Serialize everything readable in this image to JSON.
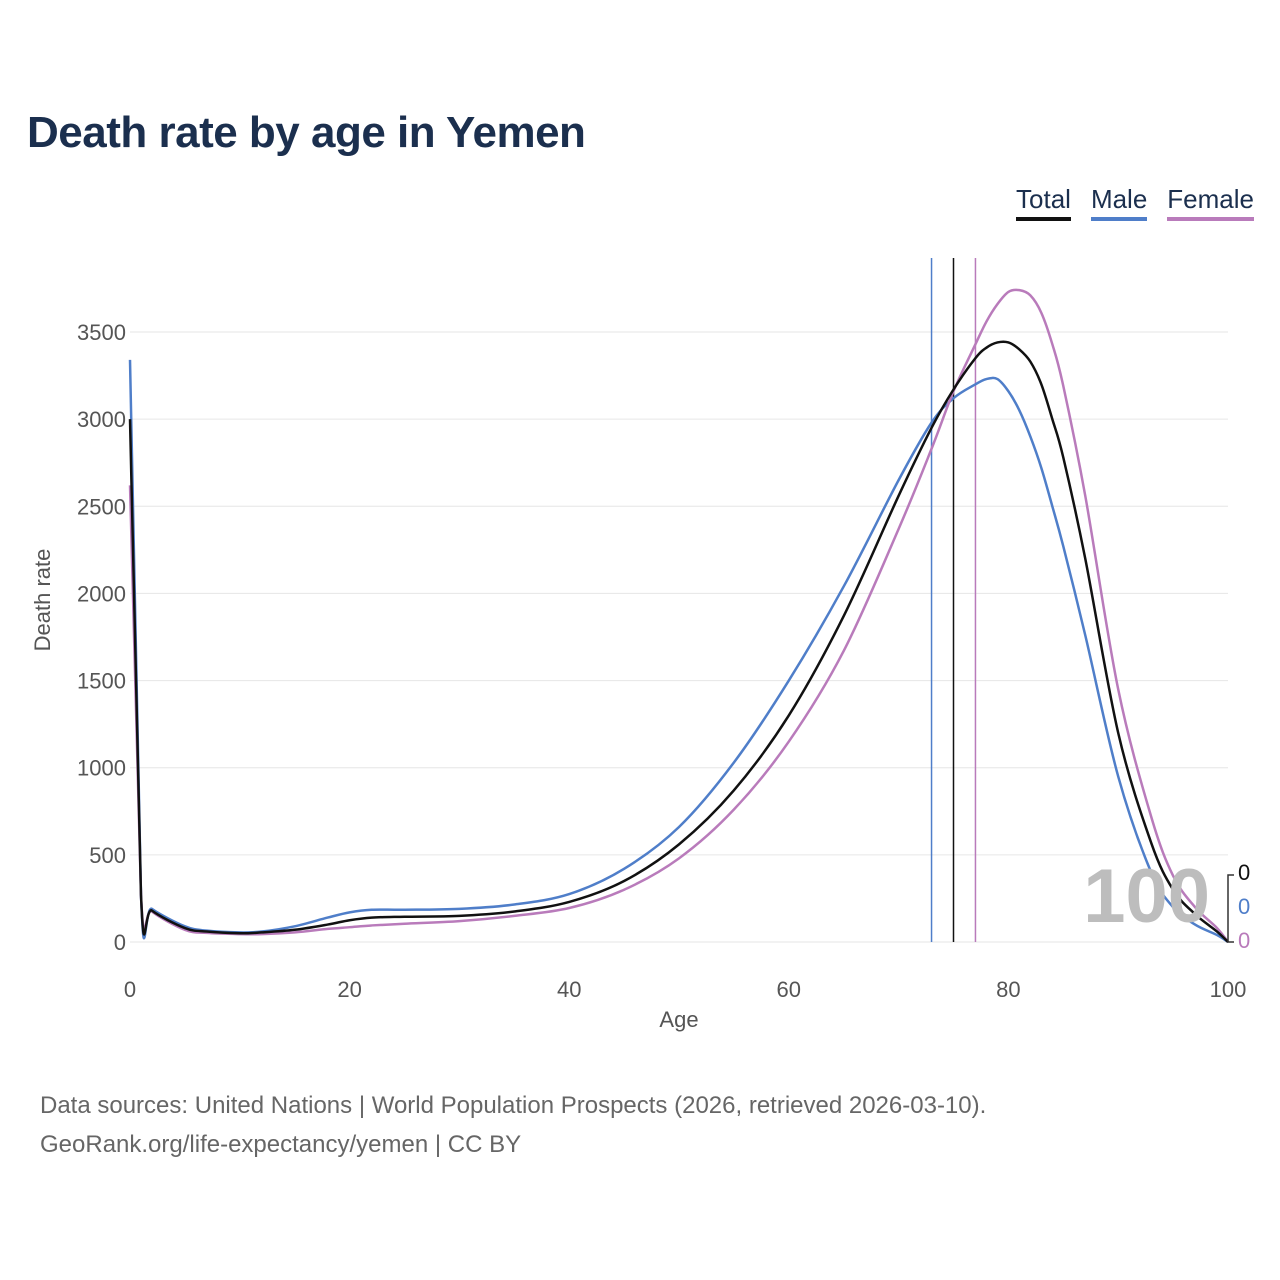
{
  "title": "Death rate by age in Yemen",
  "legend": {
    "total": "Total",
    "male": "Male",
    "female": "Female"
  },
  "colors": {
    "total": "#111111",
    "male": "#4f7ec9",
    "female": "#b97bbb",
    "title": "#1b2f4e",
    "grid": "#e6e6e6"
  },
  "chart_data": {
    "type": "line",
    "title": "Death rate by age in Yemen",
    "xlabel": "Age",
    "ylabel": "Death rate",
    "xlim": [
      0,
      100
    ],
    "ylim": [
      0,
      3900
    ],
    "xticks": [
      0,
      20,
      40,
      60,
      80,
      100
    ],
    "yticks": [
      0,
      500,
      1000,
      1500,
      2000,
      2500,
      3000,
      3500
    ],
    "x": [
      0,
      1,
      2,
      5,
      7,
      10,
      12,
      15,
      18,
      20,
      22,
      25,
      30,
      35,
      40,
      45,
      50,
      55,
      60,
      65,
      70,
      73,
      75,
      77,
      78,
      79,
      80,
      81,
      82,
      83,
      84,
      85,
      87,
      90,
      93,
      95,
      97,
      99,
      100
    ],
    "series": [
      {
        "name": "Total",
        "values": [
          3000,
          270,
          180,
          80,
          60,
          50,
          55,
          70,
          100,
          125,
          140,
          145,
          150,
          175,
          230,
          350,
          560,
          870,
          1300,
          1870,
          2560,
          2950,
          3170,
          3350,
          3410,
          3440,
          3440,
          3400,
          3330,
          3200,
          3000,
          2780,
          2200,
          1200,
          570,
          300,
          160,
          60,
          0
        ]
      },
      {
        "name": "Male",
        "values": [
          3340,
          270,
          190,
          90,
          65,
          55,
          60,
          90,
          140,
          170,
          185,
          185,
          190,
          215,
          275,
          420,
          660,
          1030,
          1500,
          2040,
          2650,
          2980,
          3120,
          3200,
          3230,
          3230,
          3160,
          3050,
          2900,
          2720,
          2500,
          2270,
          1760,
          950,
          400,
          200,
          100,
          40,
          0
        ]
      },
      {
        "name": "Female",
        "values": [
          2620,
          270,
          175,
          70,
          52,
          45,
          45,
          55,
          75,
          85,
          95,
          105,
          120,
          150,
          195,
          300,
          480,
          760,
          1150,
          1670,
          2370,
          2830,
          3160,
          3430,
          3560,
          3660,
          3730,
          3740,
          3710,
          3610,
          3430,
          3190,
          2560,
          1450,
          720,
          380,
          200,
          80,
          0
        ]
      }
    ],
    "markers": [
      {
        "name": "Male",
        "x": 73
      },
      {
        "name": "Total",
        "x": 75
      },
      {
        "name": "Female",
        "x": 77
      }
    ],
    "current_age": 100,
    "end_values": [
      {
        "name": "Total",
        "value": 0
      },
      {
        "name": "Male",
        "value": 0
      },
      {
        "name": "Female",
        "value": 0
      }
    ]
  },
  "footer": {
    "line1": "Data sources: United Nations | World Population Prospects (2026, retrieved 2026-03-10).",
    "line2": "GeoRank.org/life-expectancy/yemen | CC BY"
  }
}
